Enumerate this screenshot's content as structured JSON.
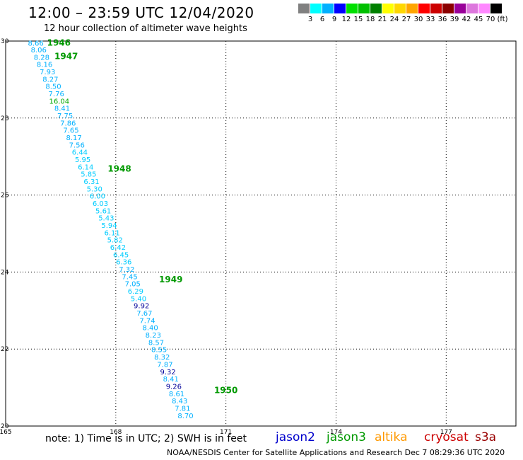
{
  "header": {
    "title": "12:00 – 23:59 UTC 12/04/2020",
    "subtitle": "12 hour collection of altimeter wave heights"
  },
  "legend": {
    "colors": [
      "#808080",
      "#00ffff",
      "#00b0ff",
      "#0000ff",
      "#00e000",
      "#00c000",
      "#008000",
      "#ffff00",
      "#ffd700",
      "#ffa500",
      "#ff0000",
      "#cc0000",
      "#8b0000",
      "#990099",
      "#dd77dd",
      "#ff88ff",
      "#000000"
    ],
    "labels": [
      "3",
      "6",
      "9",
      "12",
      "15",
      "18",
      "21",
      "24",
      "27",
      "30",
      "33",
      "36",
      "39",
      "42",
      "45",
      "70",
      "(ft)"
    ]
  },
  "map": {
    "x_ticks": [
      "165",
      "168",
      "171",
      "174",
      "177"
    ],
    "y_ticks": [
      "30",
      "28",
      "26",
      "24",
      "22",
      "20"
    ],
    "hour_labels": [
      {
        "text": "1946",
        "lon": 166.45,
        "lat": 29.97
      },
      {
        "text": "1947",
        "lon": 166.65,
        "lat": 29.62
      },
      {
        "text": "1948",
        "lon": 168.1,
        "lat": 26.7
      },
      {
        "text": "1949",
        "lon": 169.5,
        "lat": 23.82
      },
      {
        "text": "1950",
        "lon": 171.0,
        "lat": 20.95
      }
    ],
    "track_color": "#00ccff",
    "jason2_color": "#000099",
    "jason3_color": "#009900",
    "points": [
      {
        "v": "8.66",
        "c": "#00b0ff",
        "lat": 29.95,
        "lon": 165.82
      },
      {
        "v": "8.06",
        "c": "#00b0ff",
        "lat": 29.78,
        "lon": 165.9
      },
      {
        "v": "8.28",
        "c": "#00b0ff",
        "lat": 29.59,
        "lon": 165.98
      },
      {
        "v": "8.16",
        "c": "#00b0ff",
        "lat": 29.4,
        "lon": 166.06
      },
      {
        "v": "7.93",
        "c": "#00b0ff",
        "lat": 29.21,
        "lon": 166.14
      },
      {
        "v": "8.27",
        "c": "#00b0ff",
        "lat": 29.02,
        "lon": 166.22
      },
      {
        "v": "8.50",
        "c": "#00b0ff",
        "lat": 28.83,
        "lon": 166.3
      },
      {
        "v": "7.76",
        "c": "#00b0ff",
        "lat": 28.64,
        "lon": 166.38
      },
      {
        "v": "16.04",
        "c": "#00aa00",
        "lat": 28.45,
        "lon": 166.46
      },
      {
        "v": "8.41",
        "c": "#00b0ff",
        "lat": 28.26,
        "lon": 166.54
      },
      {
        "v": "7.75",
        "c": "#00b0ff",
        "lat": 28.07,
        "lon": 166.62
      },
      {
        "v": "7.86",
        "c": "#00b0ff",
        "lat": 27.88,
        "lon": 166.7
      },
      {
        "v": "7.65",
        "c": "#00b0ff",
        "lat": 27.69,
        "lon": 166.78
      },
      {
        "v": "8.17",
        "c": "#00b0ff",
        "lat": 27.5,
        "lon": 166.86
      },
      {
        "v": "7.56",
        "c": "#00b0ff",
        "lat": 27.31,
        "lon": 166.94
      },
      {
        "v": "6.44",
        "c": "#00ccff",
        "lat": 27.12,
        "lon": 167.02
      },
      {
        "v": "5.95",
        "c": "#00ccff",
        "lat": 26.93,
        "lon": 167.1
      },
      {
        "v": "6.14",
        "c": "#00ccff",
        "lat": 26.74,
        "lon": 167.18
      },
      {
        "v": "5.85",
        "c": "#00ccff",
        "lat": 26.55,
        "lon": 167.26
      },
      {
        "v": "6.31",
        "c": "#00ccff",
        "lat": 26.36,
        "lon": 167.34
      },
      {
        "v": "5.30",
        "c": "#00ccff",
        "lat": 26.17,
        "lon": 167.42
      },
      {
        "v": "6.00",
        "c": "#00ccff",
        "lat": 25.98,
        "lon": 167.5
      },
      {
        "v": "6.03",
        "c": "#00ccff",
        "lat": 25.79,
        "lon": 167.58
      },
      {
        "v": "5.61",
        "c": "#00ccff",
        "lat": 25.6,
        "lon": 167.66
      },
      {
        "v": "5.43",
        "c": "#00ccff",
        "lat": 25.41,
        "lon": 167.74
      },
      {
        "v": "5.94",
        "c": "#00ccff",
        "lat": 25.22,
        "lon": 167.82
      },
      {
        "v": "6.11",
        "c": "#00ccff",
        "lat": 25.03,
        "lon": 167.9
      },
      {
        "v": "5.82",
        "c": "#00ccff",
        "lat": 24.84,
        "lon": 167.98
      },
      {
        "v": "6.42",
        "c": "#00ccff",
        "lat": 24.65,
        "lon": 168.06
      },
      {
        "v": "6.45",
        "c": "#00ccff",
        "lat": 24.46,
        "lon": 168.14
      },
      {
        "v": "6.36",
        "c": "#00ccff",
        "lat": 24.27,
        "lon": 168.22
      },
      {
        "v": "7.32",
        "c": "#00b0ff",
        "lat": 24.08,
        "lon": 168.3
      },
      {
        "v": "7.45",
        "c": "#00b0ff",
        "lat": 23.89,
        "lon": 168.38
      },
      {
        "v": "7.05",
        "c": "#00b0ff",
        "lat": 23.7,
        "lon": 168.46
      },
      {
        "v": "6.29",
        "c": "#00ccff",
        "lat": 23.51,
        "lon": 168.54
      },
      {
        "v": "5.40",
        "c": "#00ccff",
        "lat": 23.32,
        "lon": 168.62
      },
      {
        "v": "9.92",
        "c": "#000099",
        "lat": 23.13,
        "lon": 168.7
      },
      {
        "v": "7.67",
        "c": "#00b0ff",
        "lat": 22.94,
        "lon": 168.78
      },
      {
        "v": "7.74",
        "c": "#00b0ff",
        "lat": 22.75,
        "lon": 168.86
      },
      {
        "v": "8.40",
        "c": "#00b0ff",
        "lat": 22.56,
        "lon": 168.94
      },
      {
        "v": "8.23",
        "c": "#00b0ff",
        "lat": 22.37,
        "lon": 169.02
      },
      {
        "v": "8.57",
        "c": "#00b0ff",
        "lat": 22.18,
        "lon": 169.1
      },
      {
        "v": "8.55",
        "c": "#00b0ff",
        "lat": 21.99,
        "lon": 169.18
      },
      {
        "v": "8.32",
        "c": "#00b0ff",
        "lat": 21.8,
        "lon": 169.26
      },
      {
        "v": "7.87",
        "c": "#00b0ff",
        "lat": 21.61,
        "lon": 169.34
      },
      {
        "v": "9.32",
        "c": "#000099",
        "lat": 21.42,
        "lon": 169.42
      },
      {
        "v": "8.41",
        "c": "#00b0ff",
        "lat": 21.23,
        "lon": 169.5
      },
      {
        "v": "9.26",
        "c": "#000099",
        "lat": 21.04,
        "lon": 169.58
      },
      {
        "v": "8.61",
        "c": "#00b0ff",
        "lat": 20.85,
        "lon": 169.66
      },
      {
        "v": "8.43",
        "c": "#00b0ff",
        "lat": 20.66,
        "lon": 169.74
      },
      {
        "v": "7.81",
        "c": "#00b0ff",
        "lat": 20.47,
        "lon": 169.82
      },
      {
        "v": "8.70",
        "c": "#00b0ff",
        "lat": 20.28,
        "lon": 169.9
      }
    ]
  },
  "footer": {
    "note": "note: 1) Time is in UTC; 2) SWH is in feet",
    "satellites": [
      {
        "name": "jason2",
        "color": "#0000cc"
      },
      {
        "name": "jason3",
        "color": "#009900"
      },
      {
        "name": "altika",
        "color": "#ff9900"
      },
      {
        "name": "cryosat",
        "color": "#cc0000"
      },
      {
        "name": "s3a",
        "color": "#990000"
      }
    ],
    "credit": "NOAA/NESDIS Center for Satellite Applications and Research   Dec  7 08:29:36 UTC 2020"
  }
}
